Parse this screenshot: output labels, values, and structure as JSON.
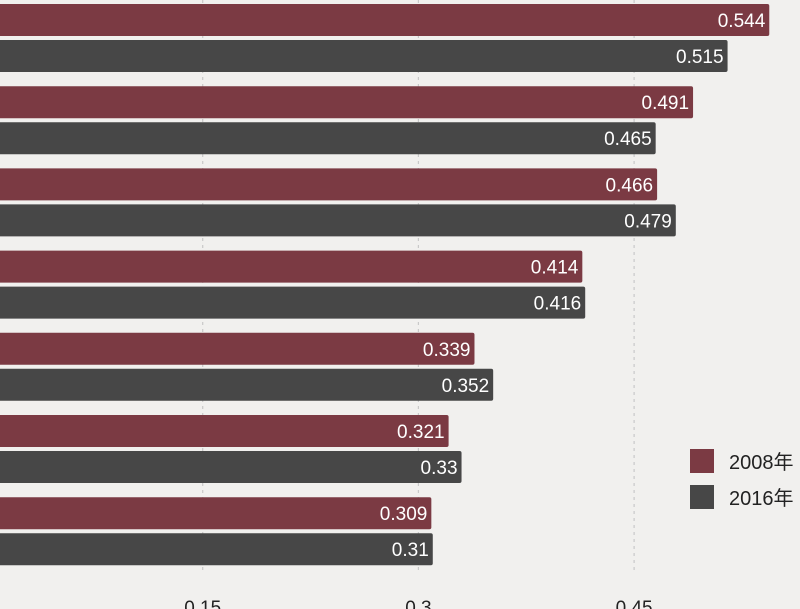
{
  "chart_data": {
    "type": "bar",
    "orientation": "horizontal",
    "title": "",
    "xlabel": "",
    "ylabel": "",
    "xlim": [
      0,
      0.555
    ],
    "xticks": [
      "0.15",
      "0.3",
      "0.45"
    ],
    "grid": "vertical dashed",
    "legend_position": "bottom-right",
    "series": [
      {
        "name": "2008年",
        "color": "#7b3a43",
        "values": [
          0.544,
          0.491,
          0.466,
          0.414,
          0.339,
          0.321,
          0.309
        ],
        "labels": [
          "0.544",
          "0.491",
          "0.466",
          "0.414",
          "0.339",
          "0.321",
          "0.309"
        ]
      },
      {
        "name": "2016年",
        "color": "#474747",
        "values": [
          0.515,
          0.465,
          0.479,
          0.416,
          0.352,
          0.33,
          0.31
        ],
        "labels": [
          "0.515",
          "0.465",
          "0.479",
          "0.416",
          "0.352",
          "0.33",
          "0.31"
        ]
      }
    ]
  }
}
